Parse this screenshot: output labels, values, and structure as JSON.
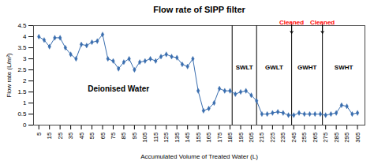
{
  "chart_data": {
    "type": "line",
    "title": "Flow rate of SIPP filter",
    "x_label": "Accumulated Volume of Treated Water (L)",
    "y_label": "Flow rate (L/m²)",
    "x": [
      5,
      10,
      15,
      20,
      25,
      30,
      35,
      40,
      45,
      50,
      55,
      60,
      65,
      70,
      75,
      80,
      85,
      90,
      95,
      100,
      105,
      110,
      115,
      120,
      125,
      130,
      135,
      140,
      145,
      150,
      155,
      160,
      165,
      170,
      175,
      180,
      185,
      190,
      195,
      200,
      205,
      210,
      215,
      220,
      225,
      230,
      235,
      240,
      245,
      250,
      255,
      260,
      265,
      270,
      275,
      280,
      285,
      290,
      295,
      300,
      305
    ],
    "values": [
      4.0,
      3.85,
      3.55,
      3.95,
      3.95,
      3.5,
      3.2,
      3.0,
      3.65,
      3.6,
      3.75,
      3.8,
      4.1,
      3.0,
      2.9,
      2.55,
      2.85,
      3.0,
      2.5,
      2.85,
      2.9,
      3.0,
      2.9,
      3.1,
      3.2,
      3.1,
      3.05,
      2.75,
      2.65,
      3.0,
      1.55,
      0.65,
      0.75,
      1.0,
      1.65,
      1.55,
      1.55,
      1.4,
      1.5,
      1.55,
      1.35,
      1.1,
      0.5,
      0.5,
      0.55,
      0.6,
      0.55,
      0.45,
      0.45,
      0.55,
      0.5,
      0.5,
      0.5,
      0.5,
      0.45,
      0.5,
      0.55,
      0.9,
      0.85,
      0.5,
      0.55
    ],
    "color": "#3a6eaf",
    "marker": "diamond",
    "xlim": [
      0,
      312
    ],
    "xticks": [
      5,
      15,
      25,
      35,
      45,
      55,
      65,
      75,
      85,
      95,
      105,
      115,
      125,
      135,
      145,
      155,
      165,
      175,
      185,
      195,
      205,
      215,
      225,
      235,
      245,
      255,
      265,
      275,
      285,
      295,
      305
    ],
    "ylim": [
      0,
      4.5
    ],
    "yticks": [
      0,
      0.5,
      1,
      1.5,
      2,
      2.5,
      3,
      3.5,
      4,
      4.5
    ],
    "vlines": [
      187,
      210,
      243,
      272
    ],
    "annotations": [
      {
        "text": "SWLT",
        "x": 198.5,
        "y": 2.6
      },
      {
        "text": "GWLT",
        "x": 226.5,
        "y": 2.6
      },
      {
        "text": "GWHT",
        "x": 257.5,
        "y": 2.6
      },
      {
        "text": "SWHT",
        "x": 292,
        "y": 2.6
      },
      {
        "text": "Cleaned",
        "x": 243,
        "y": 4.55,
        "arrow_to": 4.15,
        "color": "red"
      },
      {
        "text": "Cleaned",
        "x": 272,
        "y": 4.55,
        "arrow_to": 4.15,
        "color": "red"
      },
      {
        "text": "Deionised Water",
        "x": 80,
        "y": 1.65
      }
    ]
  }
}
